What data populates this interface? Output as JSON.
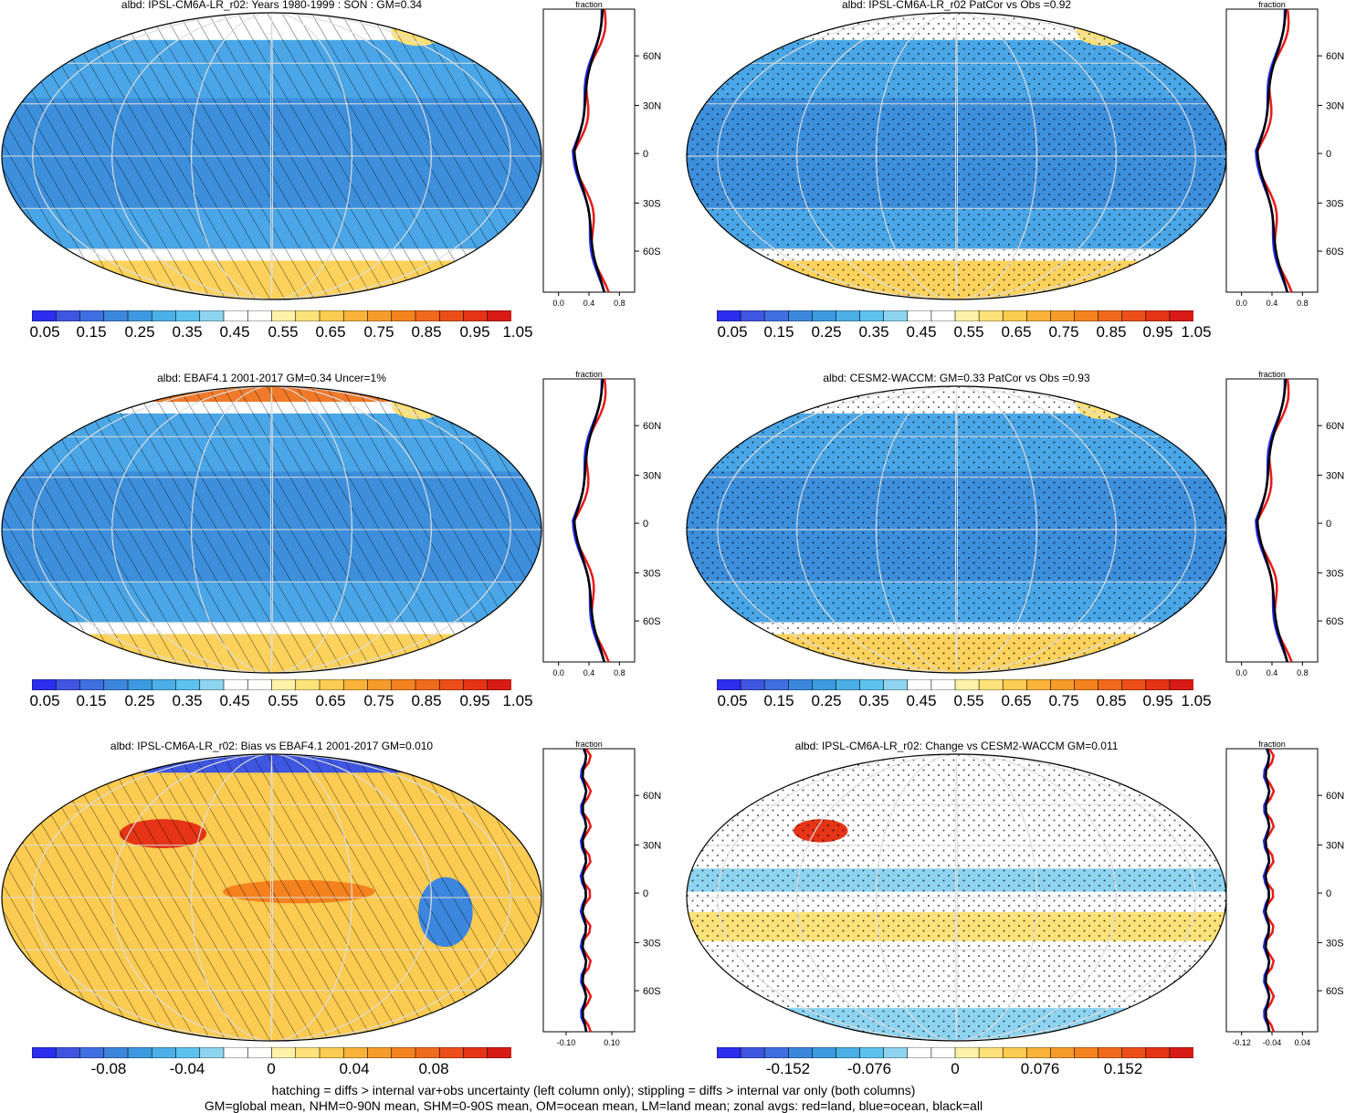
{
  "panels": [
    {
      "title": "albd: IPSL-CM6A-LR_r02: Years 1980-1999 : SON : GM=0.34",
      "palette": "abs",
      "overlay": "hatch",
      "cbar_labels": [
        "0.05",
        "0.15",
        "0.25",
        "0.35",
        "0.45",
        "0.55",
        "0.65",
        "0.75",
        "0.85",
        "0.95",
        "1.05"
      ],
      "zonal": {
        "xlabel": "fraction",
        "ticks": [
          "0.0",
          "0.4",
          "0.8"
        ],
        "ylabels": [
          "60N",
          "30N",
          "0",
          "30S",
          "60S"
        ]
      }
    },
    {
      "title": "albd: IPSL-CM6A-LR_r02 PatCor vs Obs =0.92",
      "palette": "abs",
      "overlay": "stipple",
      "cbar_labels": [
        "0.05",
        "0.15",
        "0.25",
        "0.35",
        "0.45",
        "0.55",
        "0.65",
        "0.75",
        "0.85",
        "0.95",
        "1.05"
      ],
      "zonal": {
        "xlabel": "fraction",
        "ticks": [
          "0.0",
          "0.4",
          "0.8"
        ],
        "ylabels": [
          "60N",
          "30N",
          "0",
          "30S",
          "60S"
        ]
      }
    },
    {
      "title": "albd: EBAF4.1 2001-2017 GM=0.34 Uncer=1%",
      "palette": "abs",
      "overlay": "hatch",
      "cbar_labels": [
        "0.05",
        "0.15",
        "0.25",
        "0.35",
        "0.45",
        "0.55",
        "0.65",
        "0.75",
        "0.85",
        "0.95",
        "1.05"
      ],
      "zonal": {
        "xlabel": "fraction",
        "ticks": [
          "0.0",
          "0.4",
          "0.8"
        ],
        "ylabels": [
          "60N",
          "30N",
          "0",
          "30S",
          "60S"
        ]
      }
    },
    {
      "title": "albd: CESM2-WACCM: GM=0.33 PatCor vs Obs =0.93",
      "palette": "abs",
      "overlay": "stipple",
      "cbar_labels": [
        "0.05",
        "0.15",
        "0.25",
        "0.35",
        "0.45",
        "0.55",
        "0.65",
        "0.75",
        "0.85",
        "0.95",
        "1.05"
      ],
      "zonal": {
        "xlabel": "fraction",
        "ticks": [
          "0.0",
          "0.4",
          "0.8"
        ],
        "ylabels": [
          "60N",
          "30N",
          "0",
          "30S",
          "60S"
        ]
      }
    },
    {
      "title": "albd: IPSL-CM6A-LR_r02: Bias vs EBAF4.1 2001-2017  GM=0.010",
      "palette": "diff",
      "overlay": "hatch",
      "cbar_labels": [
        "-0.08",
        "-0.04",
        "0",
        "0.04",
        "0.08"
      ],
      "zonal": {
        "xlabel": "fraction",
        "ticks": [
          "-0.10",
          "0.10"
        ],
        "ylabels": [
          "60N",
          "30N",
          "0",
          "30S",
          "60S"
        ]
      }
    },
    {
      "title": "albd: IPSL-CM6A-LR_r02: Change vs CESM2-WACCM GM=0.011",
      "palette": "diff",
      "overlay": "stipple",
      "cbar_labels": [
        "-0.152",
        "-0.076",
        "0",
        "0.076",
        "0.152"
      ],
      "zonal": {
        "xlabel": "fraction",
        "ticks": [
          "-0.12",
          "-0.04",
          "0.04"
        ],
        "ylabels": [
          "60N",
          "30N",
          "0",
          "30S",
          "60S"
        ]
      }
    }
  ],
  "footer": {
    "line1": "hatching = diffs > internal var+obs uncertainty (left column only); stippling = diffs > internal var only (both columns)",
    "line2": "GM=global mean, NHM=0-90N mean, SHM=0-90S mean, OM=ocean mean, LM=land mean; zonal avgs: red=land, blue=ocean, black=all"
  },
  "colors": {
    "abs_scale": [
      "#2d2dee",
      "#3f56e0",
      "#3f6fe0",
      "#3d86dd",
      "#3d9ae0",
      "#4ab0e6",
      "#5cc3ef",
      "#8ed4f0",
      "#ffffff",
      "#ffffff",
      "#fff2a8",
      "#fde27a",
      "#fccb51",
      "#f9b23a",
      "#f79b2d",
      "#f4821f",
      "#f06a1c",
      "#ec4f18",
      "#e53416",
      "#d81b16"
    ],
    "diff_scale": [
      "#2d2dee",
      "#3f56e0",
      "#3f6fe0",
      "#3d86dd",
      "#3d9ae0",
      "#4ab0e6",
      "#5cc3ef",
      "#8ed4f0",
      "#ffffff",
      "#ffffff",
      "#fff2a8",
      "#fde27a",
      "#fccb51",
      "#f9b23a",
      "#f79b2d",
      "#f4821f",
      "#f06a1c",
      "#ec4f18",
      "#e53416",
      "#d81b16"
    ],
    "land_line": "#e8191a",
    "ocean_line": "#1f2bea",
    "all_line": "#000000"
  }
}
